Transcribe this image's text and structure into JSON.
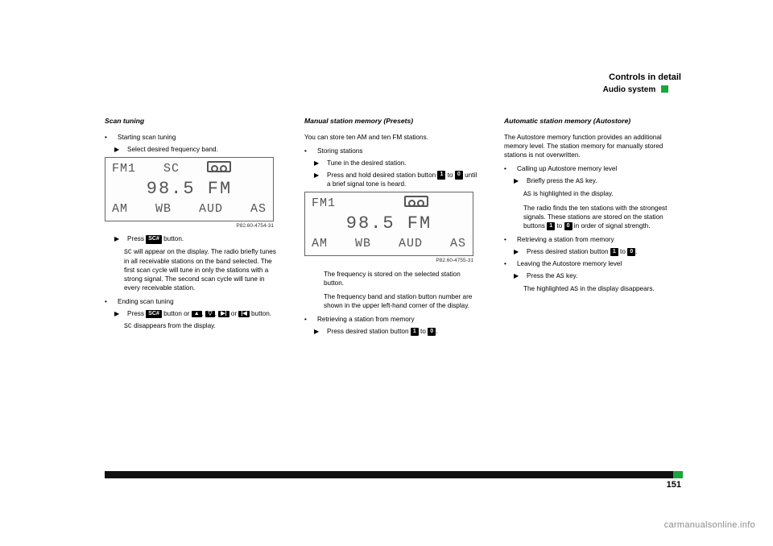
{
  "header": {
    "title": "Controls in detail",
    "subtitle": "Audio system",
    "marker_color": "#1aa63a"
  },
  "page_number": "151",
  "watermark": "carmanualsonline.info",
  "col1": {
    "heading": "Scan tuning",
    "b1": "Starting scan tuning",
    "a1": "Select desired frequency band.",
    "lcd": {
      "top_l": "FM1",
      "top_m": "SC",
      "freq": "98.5 FM",
      "bot_l": "AM",
      "bot_m1": "WB",
      "bot_m2": "AUD",
      "bot_r": "AS",
      "ref": "P82.60-4754-31"
    },
    "a2_pre": "Press",
    "a2_key": "SC#",
    "a2_post": "button.",
    "p1a": "SC",
    "p1b": " will appear on the display. The radio briefly tunes in all receivable stations on the band selected. The first scan cycle will tune in only the stations with a strong signal. The second scan cycle will tune in every receivable station.",
    "b2": "Ending scan tuning",
    "a3_pre": "Press",
    "a3_key": "SC#",
    "a3_mid": "button or",
    "a3_keys": {
      "up": "▲",
      "dn": "▽",
      "fwd": "▶|",
      "back": "|◀"
    },
    "a3_post": "button.",
    "p2a": "SC",
    "p2b": " disappears from the display."
  },
  "col2": {
    "heading": "Manual station memory (Presets)",
    "p0": "You can store ten AM and ten FM stations.",
    "b1": "Storing stations",
    "a1": "Tune in the desired station.",
    "a2_pre": "Press and hold desired station button ",
    "a2_k1": "1",
    "a2_mid": " to ",
    "a2_k0": "0",
    "a2_post": " until a brief signal tone is heard.",
    "lcd": {
      "top_l": "FM1",
      "freq": "98.5 FM",
      "bot_l": "AM",
      "bot_m1": "WB",
      "bot_m2": "AUD",
      "bot_r": "AS",
      "ref": "P82.60-4755-31"
    },
    "p1": "The frequency is stored on the selected station button.",
    "p2": "The frequency band and station button number are shown in the upper left-hand corner of the display.",
    "b2": "Retrieving a station from memory",
    "a3_pre": "Press desired station button ",
    "a3_k1": "1",
    "a3_mid": " to ",
    "a3_k0": "0",
    "a3_post": "."
  },
  "col3": {
    "heading": "Automatic station memory (Autostore)",
    "p0": "The Autostore memory function provides an additional memory level. The station memory for manually stored stations is not overwritten.",
    "b1": "Calling up Autostore memory level",
    "a1_pre": "Briefly press the ",
    "a1_key": "AS",
    "a1_post": " key.",
    "p1a": "AS",
    "p1b": " is highlighted in the display.",
    "p2_pre": "The radio finds the ten stations with the strongest signals. These stations are stored on the station buttons ",
    "p2_k1": "1",
    "p2_mid": " to ",
    "p2_k0": "0",
    "p2_post": " in order of signal strength.",
    "b2": "Retrieving a station from memory",
    "a2_pre": "Press desired station button ",
    "a2_k1": "1",
    "a2_mid": " to ",
    "a2_k0": "0",
    "a2_post": ".",
    "b3": "Leaving the Autostore memory level",
    "a3_pre": "Press the ",
    "a3_key": "AS",
    "a3_post": " key.",
    "p3_pre": "The highlighted ",
    "p3_key": "AS",
    "p3_post": " in the display disappears."
  }
}
